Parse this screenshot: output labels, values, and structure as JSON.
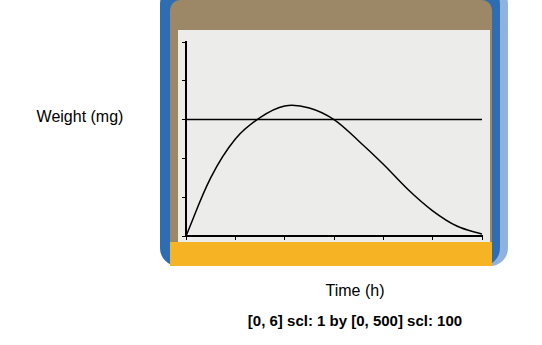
{
  "chart_data": {
    "type": "line",
    "x_label": "Time (h)",
    "y_label": "Weight (mg)",
    "annotations": [
      "[0, 6] scl: 1 by [0, 500] scl: 100"
    ],
    "series": [
      {
        "color": "#000000",
        "x": [
          0,
          0.5,
          1,
          1.5,
          2,
          2.5,
          3,
          3.5,
          4,
          4.5,
          5,
          5.5,
          6
        ],
        "values": [
          0,
          150,
          250,
          305,
          335,
          330,
          300,
          245,
          185,
          120,
          65,
          25,
          5
        ]
      },
      {
        "color": "#000000",
        "x": [
          0,
          6
        ],
        "values": [
          300,
          300
        ]
      }
    ],
    "xlim": [
      0,
      6
    ],
    "xticks": [
      0,
      1,
      2,
      3,
      4,
      5,
      6
    ],
    "ylim": [
      0,
      500
    ],
    "yticks": [
      0,
      100,
      200,
      300,
      400,
      500
    ],
    "grid": false,
    "tick_labels": false
  }
}
